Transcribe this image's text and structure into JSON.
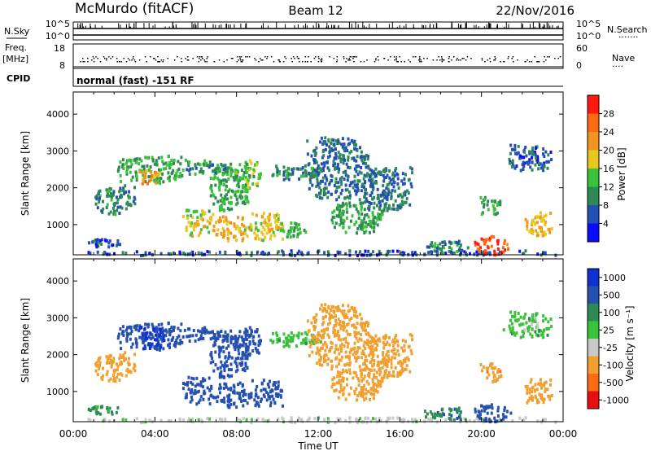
{
  "header": {
    "station": "McMurdo (fitACF)",
    "beam": "Beam 12",
    "date": "22/Nov/2016"
  },
  "left_labels": {
    "nsky": "N.Sky",
    "freq_line1": "Freq.",
    "freq_line2": "[MHz]",
    "cpid": "CPID"
  },
  "right_labels": {
    "nsearch": "N.Search",
    "nsearch_dots": "·······",
    "nave": "Nave",
    "nave_dots": "····"
  },
  "noise_panel": {
    "left_ticks": [
      "10^5",
      "10^0"
    ],
    "right_ticks": [
      "10^5",
      "10^0"
    ]
  },
  "freq_panel": {
    "left_ticks": [
      "18",
      "8"
    ],
    "right_ticks": [
      "60",
      "0"
    ]
  },
  "cpid_text": "normal (fast) -151 RF",
  "x_axis": {
    "label": "Time UT",
    "ticks": [
      "00:00",
      "04:00",
      "08:00",
      "12:00",
      "16:00",
      "20:00",
      "00:00"
    ]
  },
  "colors": {
    "power": [
      "#0a0aff",
      "#2250b4",
      "#2e8a55",
      "#39c23a",
      "#e8c81e",
      "#f0961e",
      "#ff6a10",
      "#ff1a10"
    ],
    "velocity": [
      "#e61010",
      "#ff6a12",
      "#f0a030",
      "#c8c8c8",
      "#39c23a",
      "#2e8a55",
      "#2550b0",
      "#1030d0"
    ]
  },
  "chart_data": [
    {
      "type": "heatmap",
      "name": "power",
      "xlabel": "Time UT",
      "ylabel": "Slant Range [km]",
      "x_ticks": [
        "00:00",
        "04:00",
        "08:00",
        "12:00",
        "16:00",
        "20:00",
        "00:00"
      ],
      "xlim_hours": [
        0,
        24
      ],
      "y_ticks": [
        1000,
        2000,
        3000,
        4000
      ],
      "ylim": [
        180,
        4600
      ],
      "colorbar": {
        "label": "Power [dB]",
        "ticks": [
          "4",
          "8",
          "12",
          "16",
          "20",
          "24",
          "28"
        ],
        "range": [
          0,
          32
        ]
      },
      "scatter_regions": [
        {
          "t": [
            2.1,
            5.4
          ],
          "r": [
            2150,
            2900
          ],
          "level": 12
        },
        {
          "t": [
            1.0,
            3.0
          ],
          "r": [
            1300,
            2100
          ],
          "level": 10
        },
        {
          "t": [
            3.2,
            4.2
          ],
          "r": [
            2150,
            2500
          ],
          "level": 22
        },
        {
          "t": [
            5.3,
            7.9
          ],
          "r": [
            2400,
            2800
          ],
          "level": 10
        },
        {
          "t": [
            6.6,
            8.6
          ],
          "r": [
            1400,
            2600
          ],
          "level": 12
        },
        {
          "t": [
            5.3,
            6.8
          ],
          "r": [
            700,
            1450
          ],
          "level": 18
        },
        {
          "t": [
            6.8,
            8.4
          ],
          "r": [
            600,
            1300
          ],
          "level": 20
        },
        {
          "t": [
            8.2,
            10.3
          ],
          "r": [
            600,
            1350
          ],
          "level": 18
        },
        {
          "t": [
            7.9,
            9.2
          ],
          "r": [
            2000,
            2800
          ],
          "level": 14
        },
        {
          "t": [
            9.6,
            12.2
          ],
          "r": [
            2250,
            2650
          ],
          "level": 10
        },
        {
          "t": [
            10.1,
            11.4
          ],
          "r": [
            700,
            1100
          ],
          "level": 12
        },
        {
          "t": [
            11.4,
            14.6
          ],
          "r": [
            1700,
            3400
          ],
          "level": 8
        },
        {
          "t": [
            12.6,
            15.1
          ],
          "r": [
            800,
            1700
          ],
          "level": 12
        },
        {
          "t": [
            14.1,
            16.6
          ],
          "r": [
            1400,
            2600
          ],
          "level": 8
        },
        {
          "t": [
            0.7,
            2.4
          ],
          "r": [
            420,
            650
          ],
          "level": 6
        },
        {
          "t": [
            0.3,
            23.8
          ],
          "r": [
            200,
            330
          ],
          "level": 6
        },
        {
          "t": [
            17.1,
            19.3
          ],
          "r": [
            250,
            600
          ],
          "level": 10
        },
        {
          "t": [
            19.6,
            21.4
          ],
          "r": [
            220,
            720
          ],
          "level": 27
        },
        {
          "t": [
            19.9,
            21.0
          ],
          "r": [
            1300,
            1800
          ],
          "level": 12
        },
        {
          "t": [
            22.1,
            23.5
          ],
          "r": [
            700,
            1400
          ],
          "level": 20
        },
        {
          "t": [
            20.9,
            23.4
          ],
          "r": [
            2500,
            3200
          ],
          "level": 6
        }
      ]
    },
    {
      "type": "heatmap",
      "name": "velocity",
      "xlabel": "Time UT",
      "ylabel": "Slant Range [km]",
      "x_ticks": [
        "00:00",
        "04:00",
        "08:00",
        "12:00",
        "16:00",
        "20:00",
        "00:00"
      ],
      "xlim_hours": [
        0,
        24
      ],
      "y_ticks": [
        1000,
        2000,
        3000,
        4000
      ],
      "ylim": [
        180,
        4600
      ],
      "colorbar": {
        "label": "Velocity [m s⁻¹]",
        "ticks": [
          "-1000",
          "-500",
          "-100",
          "-25",
          "25",
          "100",
          "500",
          "1000"
        ]
      },
      "scatter_regions": [
        {
          "t": [
            2.1,
            5.4
          ],
          "r": [
            2150,
            2900
          ],
          "level": 200
        },
        {
          "t": [
            1.0,
            3.0
          ],
          "r": [
            1300,
            2100
          ],
          "level": -150
        },
        {
          "t": [
            3.2,
            4.5
          ],
          "r": [
            2200,
            2800
          ],
          "level": 600
        },
        {
          "t": [
            5.3,
            7.9
          ],
          "r": [
            2400,
            2800
          ],
          "level": 150
        },
        {
          "t": [
            6.6,
            8.6
          ],
          "r": [
            1400,
            2600
          ],
          "level": 200
        },
        {
          "t": [
            5.3,
            6.8
          ],
          "r": [
            700,
            1450
          ],
          "level": 300
        },
        {
          "t": [
            6.8,
            8.4
          ],
          "r": [
            600,
            1300
          ],
          "level": 250
        },
        {
          "t": [
            8.2,
            10.3
          ],
          "r": [
            600,
            1350
          ],
          "level": 300
        },
        {
          "t": [
            7.9,
            9.2
          ],
          "r": [
            2000,
            2800
          ],
          "level": 150
        },
        {
          "t": [
            9.6,
            12.2
          ],
          "r": [
            2250,
            2650
          ],
          "level": 0
        },
        {
          "t": [
            11.4,
            14.6
          ],
          "r": [
            1700,
            3400
          ],
          "level": -150
        },
        {
          "t": [
            12.6,
            15.1
          ],
          "r": [
            800,
            1700
          ],
          "level": -200
        },
        {
          "t": [
            14.1,
            16.6
          ],
          "r": [
            1400,
            2600
          ],
          "level": -200
        },
        {
          "t": [
            0.7,
            2.4
          ],
          "r": [
            420,
            650
          ],
          "level": 50
        },
        {
          "t": [
            0.3,
            23.8
          ],
          "r": [
            200,
            330
          ],
          "level": -50
        },
        {
          "t": [
            17.1,
            19.3
          ],
          "r": [
            250,
            600
          ],
          "level": 80
        },
        {
          "t": [
            19.6,
            21.4
          ],
          "r": [
            220,
            720
          ],
          "level": 150
        },
        {
          "t": [
            19.9,
            21.0
          ],
          "r": [
            1300,
            1800
          ],
          "level": -400
        },
        {
          "t": [
            22.1,
            23.5
          ],
          "r": [
            700,
            1400
          ],
          "level": -300
        },
        {
          "t": [
            20.9,
            23.4
          ],
          "r": [
            2500,
            3200
          ],
          "level": 0
        }
      ]
    }
  ]
}
